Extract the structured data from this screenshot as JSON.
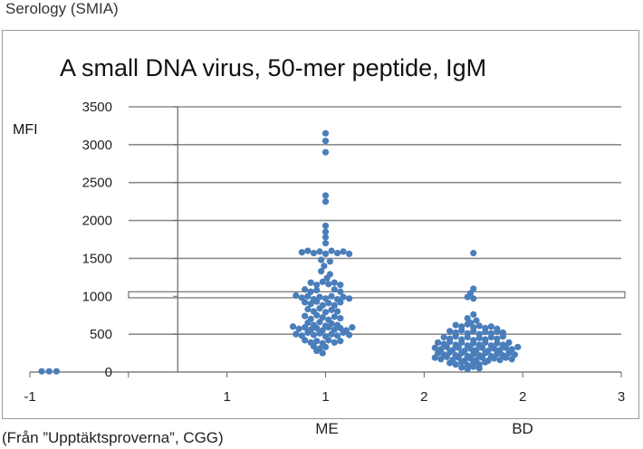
{
  "header": {
    "label": "Serology (SMIA)"
  },
  "footer": {
    "source": "(Från ”Upptäktsproverna”, CGG)"
  },
  "groups": [
    {
      "label": "ME",
      "x": 1
    },
    {
      "label": "BD",
      "x": 2
    }
  ],
  "chart_data": {
    "type": "scatter",
    "title": "A small DNA virus, 50-mer peptide, IgM",
    "ylabel": "MFI",
    "xlabel": "",
    "xlim": [
      -1,
      3
    ],
    "ylim": [
      0,
      3500
    ],
    "x_tick_labels": [
      "-1",
      "",
      "1",
      "1",
      "2",
      "2",
      "3"
    ],
    "y_ticks": [
      0,
      500,
      1000,
      1500,
      2000,
      2500,
      3000,
      3500
    ],
    "grid": true,
    "point_color": "#4a7ebb",
    "threshold_band": [
      980,
      1060
    ],
    "series": [
      {
        "points": [
          [
            -0.92,
            10
          ],
          [
            -0.87,
            10
          ],
          [
            -0.82,
            10
          ],
          [
            1.0,
            3150
          ],
          [
            1.0,
            3050
          ],
          [
            1.0,
            2900
          ],
          [
            1.0,
            2330
          ],
          [
            1.0,
            2250
          ],
          [
            1.0,
            1930
          ],
          [
            1.0,
            1850
          ],
          [
            1.0,
            1780
          ],
          [
            1.0,
            1700
          ],
          [
            0.84,
            1580
          ],
          [
            0.88,
            1600
          ],
          [
            0.92,
            1570
          ],
          [
            0.96,
            1590
          ],
          [
            1.0,
            1560
          ],
          [
            1.04,
            1600
          ],
          [
            1.08,
            1570
          ],
          [
            1.12,
            1590
          ],
          [
            1.16,
            1560
          ],
          [
            0.97,
            1480
          ],
          [
            1.03,
            1460
          ],
          [
            0.99,
            1400
          ],
          [
            0.97,
            1330
          ],
          [
            1.03,
            1290
          ],
          [
            1.01,
            1240
          ],
          [
            0.9,
            1180
          ],
          [
            0.94,
            1150
          ],
          [
            0.98,
            1190
          ],
          [
            1.02,
            1160
          ],
          [
            1.06,
            1180
          ],
          [
            1.1,
            1150
          ],
          [
            0.86,
            1090
          ],
          [
            0.9,
            1060
          ],
          [
            0.94,
            1080
          ],
          [
            1.06,
            1090
          ],
          [
            1.1,
            1060
          ],
          [
            0.8,
            1010
          ],
          [
            0.84,
            980
          ],
          [
            0.88,
            1000
          ],
          [
            0.92,
            960
          ],
          [
            0.96,
            990
          ],
          [
            1.0,
            970
          ],
          [
            1.04,
            1000
          ],
          [
            1.08,
            960
          ],
          [
            1.12,
            990
          ],
          [
            1.16,
            970
          ],
          [
            0.86,
            920
          ],
          [
            0.9,
            900
          ],
          [
            0.94,
            930
          ],
          [
            0.98,
            880
          ],
          [
            1.02,
            910
          ],
          [
            1.06,
            880
          ],
          [
            1.1,
            920
          ],
          [
            0.88,
            830
          ],
          [
            0.92,
            800
          ],
          [
            0.96,
            840
          ],
          [
            1.0,
            790
          ],
          [
            1.04,
            820
          ],
          [
            1.08,
            800
          ],
          [
            0.86,
            740
          ],
          [
            0.9,
            700
          ],
          [
            0.94,
            750
          ],
          [
            0.98,
            720
          ],
          [
            1.02,
            690
          ],
          [
            1.06,
            730
          ],
          [
            1.1,
            710
          ],
          [
            0.88,
            650
          ],
          [
            0.92,
            620
          ],
          [
            0.96,
            660
          ],
          [
            1.0,
            610
          ],
          [
            1.04,
            640
          ],
          [
            1.08,
            620
          ],
          [
            0.78,
            600
          ],
          [
            0.82,
            570
          ],
          [
            0.86,
            590
          ],
          [
            0.9,
            560
          ],
          [
            0.94,
            580
          ],
          [
            0.98,
            550
          ],
          [
            1.02,
            590
          ],
          [
            1.06,
            560
          ],
          [
            1.1,
            580
          ],
          [
            1.14,
            550
          ],
          [
            1.18,
            590
          ],
          [
            0.8,
            500
          ],
          [
            0.84,
            480
          ],
          [
            0.88,
            520
          ],
          [
            0.92,
            490
          ],
          [
            0.96,
            510
          ],
          [
            1.0,
            470
          ],
          [
            1.04,
            500
          ],
          [
            1.08,
            480
          ],
          [
            1.12,
            520
          ],
          [
            1.16,
            490
          ],
          [
            0.86,
            420
          ],
          [
            0.9,
            390
          ],
          [
            0.94,
            410
          ],
          [
            0.98,
            380
          ],
          [
            1.02,
            420
          ],
          [
            1.06,
            390
          ],
          [
            1.1,
            410
          ],
          [
            0.92,
            340
          ],
          [
            0.96,
            310
          ],
          [
            1.0,
            330
          ],
          [
            0.94,
            280
          ],
          [
            0.98,
            250
          ],
          [
            2.0,
            1570
          ],
          [
            2.0,
            1100
          ],
          [
            1.98,
            1040
          ],
          [
            1.96,
            990
          ],
          [
            2.0,
            970
          ],
          [
            2.0,
            760
          ],
          [
            1.96,
            710
          ],
          [
            2.02,
            680
          ],
          [
            1.98,
            650
          ],
          [
            1.88,
            620
          ],
          [
            1.92,
            600
          ],
          [
            1.96,
            630
          ],
          [
            2.0,
            590
          ],
          [
            2.04,
            610
          ],
          [
            2.08,
            580
          ],
          [
            2.12,
            600
          ],
          [
            2.16,
            570
          ],
          [
            1.84,
            540
          ],
          [
            1.88,
            520
          ],
          [
            1.92,
            550
          ],
          [
            1.96,
            510
          ],
          [
            2.0,
            540
          ],
          [
            2.04,
            500
          ],
          [
            2.08,
            530
          ],
          [
            2.12,
            510
          ],
          [
            2.16,
            540
          ],
          [
            2.2,
            520
          ],
          [
            1.8,
            460
          ],
          [
            1.84,
            440
          ],
          [
            1.88,
            470
          ],
          [
            1.92,
            430
          ],
          [
            1.96,
            460
          ],
          [
            2.0,
            420
          ],
          [
            2.04,
            450
          ],
          [
            2.08,
            430
          ],
          [
            2.12,
            460
          ],
          [
            2.16,
            440
          ],
          [
            2.2,
            470
          ],
          [
            1.76,
            390
          ],
          [
            1.8,
            370
          ],
          [
            1.84,
            400
          ],
          [
            1.88,
            360
          ],
          [
            1.92,
            390
          ],
          [
            1.96,
            350
          ],
          [
            2.0,
            380
          ],
          [
            2.04,
            360
          ],
          [
            2.08,
            390
          ],
          [
            2.12,
            350
          ],
          [
            2.16,
            380
          ],
          [
            2.2,
            360
          ],
          [
            2.24,
            390
          ],
          [
            1.74,
            320
          ],
          [
            1.78,
            300
          ],
          [
            1.82,
            330
          ],
          [
            1.86,
            290
          ],
          [
            1.9,
            320
          ],
          [
            1.94,
            280
          ],
          [
            1.98,
            310
          ],
          [
            2.02,
            290
          ],
          [
            2.06,
            320
          ],
          [
            2.1,
            280
          ],
          [
            2.14,
            310
          ],
          [
            2.18,
            290
          ],
          [
            2.22,
            320
          ],
          [
            2.26,
            300
          ],
          [
            2.3,
            330
          ],
          [
            1.76,
            250
          ],
          [
            1.8,
            230
          ],
          [
            1.84,
            260
          ],
          [
            1.88,
            220
          ],
          [
            1.92,
            250
          ],
          [
            1.96,
            210
          ],
          [
            2.0,
            240
          ],
          [
            2.04,
            220
          ],
          [
            2.08,
            250
          ],
          [
            2.12,
            210
          ],
          [
            2.16,
            240
          ],
          [
            2.2,
            220
          ],
          [
            2.24,
            250
          ],
          [
            2.28,
            230
          ],
          [
            1.74,
            190
          ],
          [
            1.78,
            170
          ],
          [
            1.82,
            200
          ],
          [
            1.86,
            160
          ],
          [
            1.9,
            190
          ],
          [
            1.94,
            150
          ],
          [
            1.98,
            180
          ],
          [
            2.02,
            160
          ],
          [
            2.06,
            190
          ],
          [
            2.1,
            150
          ],
          [
            2.14,
            180
          ],
          [
            2.18,
            160
          ],
          [
            2.22,
            190
          ],
          [
            2.26,
            170
          ],
          [
            1.84,
            120
          ],
          [
            1.88,
            100
          ],
          [
            1.92,
            130
          ],
          [
            1.96,
            90
          ],
          [
            2.0,
            120
          ],
          [
            2.04,
            100
          ],
          [
            2.08,
            130
          ],
          [
            1.92,
            60
          ],
          [
            1.96,
            40
          ],
          [
            2.0,
            70
          ],
          [
            2.04,
            50
          ]
        ]
      }
    ]
  }
}
